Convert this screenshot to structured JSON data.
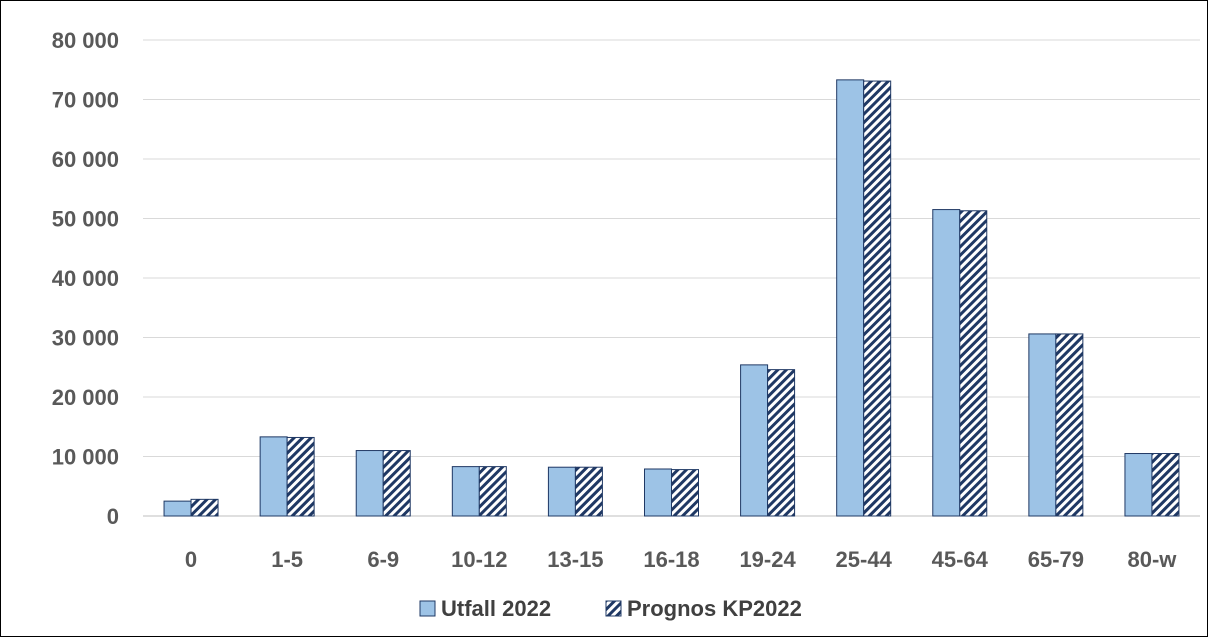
{
  "chart_data": {
    "type": "bar",
    "title": "",
    "xlabel": "",
    "ylabel": "",
    "categories": [
      "0",
      "1-5",
      "6-9",
      "10-12",
      "13-15",
      "16-18",
      "19-24",
      "25-44",
      "45-64",
      "65-79",
      "80-w"
    ],
    "ylim": [
      0,
      80000
    ],
    "yticks": [
      0,
      10000,
      20000,
      30000,
      40000,
      50000,
      60000,
      70000,
      80000
    ],
    "ytick_labels": [
      "0",
      "10 000",
      "20 000",
      "30 000",
      "40 000",
      "50 000",
      "60 000",
      "70 000",
      "80 000"
    ],
    "grid": true,
    "legend_position": "bottom",
    "series": [
      {
        "name": "Utfall 2022",
        "color": "#9dc3e6",
        "pattern": "solid",
        "values": [
          2500,
          13300,
          11000,
          8300,
          8200,
          7900,
          25400,
          73300,
          51500,
          30600,
          10500
        ]
      },
      {
        "name": "Prognos KP2022",
        "color": "#1f3864",
        "pattern": "diagonal-stripes",
        "values": [
          2800,
          13200,
          11000,
          8300,
          8200,
          7800,
          24600,
          73100,
          51300,
          30600,
          10500
        ]
      }
    ]
  }
}
